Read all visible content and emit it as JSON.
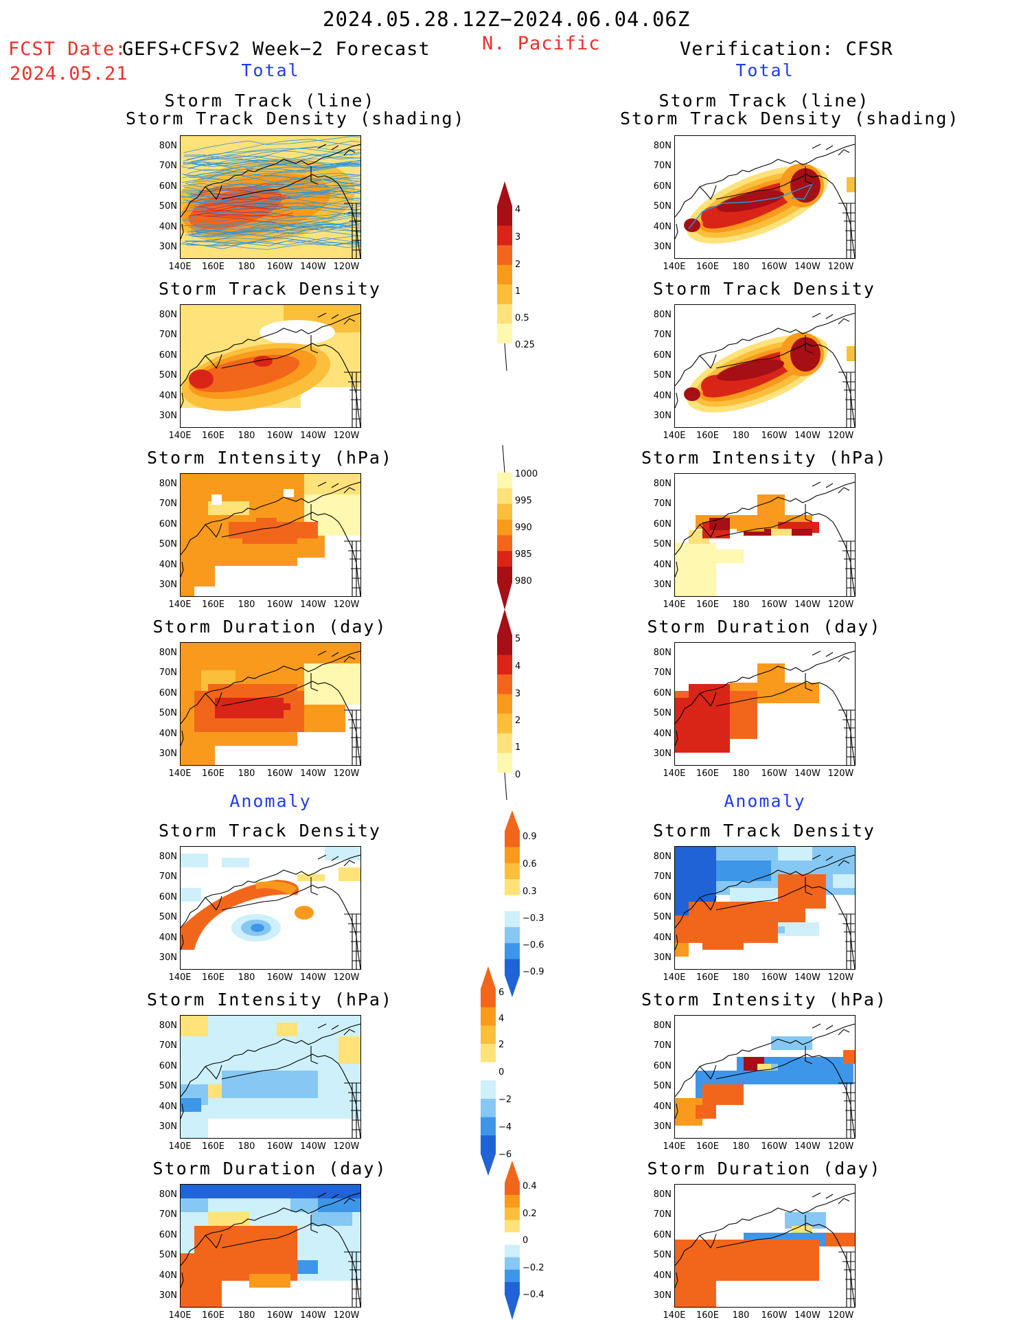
{
  "header": {
    "date_range": "2024.05.28.12Z−2024.06.04.06Z",
    "fcst_label": "FCST Date:",
    "fcst_date": "2024.05.21",
    "model": "GEFS+CFSv2 Week−2 Forecast",
    "region": "N. Pacific",
    "verification": "Verification: CFSR"
  },
  "sections": {
    "total": "Total",
    "anomaly": "Anomaly"
  },
  "panel_titles": {
    "track_line": "Storm Track (line)",
    "track_shading": "Storm Track Density (shading)",
    "density": "Storm Track Density",
    "intensity": "Storm Intensity (hPa)",
    "duration": "Storm Duration (day)"
  },
  "axes": {
    "y_ticks": [
      "80N",
      "70N",
      "60N",
      "50N",
      "40N",
      "30N"
    ],
    "x_ticks": [
      "140E",
      "160E",
      "180",
      "160W",
      "140W",
      "120W"
    ]
  },
  "colorbars": {
    "density_total": [
      "4",
      "3",
      "2",
      "1",
      "0.5",
      "0.25"
    ],
    "intensity_total": [
      "1000",
      "995",
      "990",
      "985",
      "980"
    ],
    "duration_total": [
      "5",
      "4",
      "3",
      "2",
      "1",
      "0"
    ],
    "density_anom": [
      "0.9",
      "0.6",
      "0.3",
      "−0.3",
      "−0.6",
      "−0.9"
    ],
    "intensity_anom": [
      "6",
      "4",
      "2",
      "0",
      "−2",
      "−4",
      "−6"
    ],
    "duration_anom": [
      "0.4",
      "0.2",
      "0",
      "−0.2",
      "−0.4"
    ]
  },
  "colors": {
    "pale_yellow": "#fff8b0",
    "yellow": "#ffe27a",
    "light_orange": "#fbbf3c",
    "orange": "#f99a1c",
    "orange_red": "#f2661c",
    "red": "#d92518",
    "dark_red": "#a50f15",
    "light_blue": "#cdf0fb",
    "mid_blue": "#86c8f3",
    "blue": "#3e96e8",
    "dark_blue": "#1f63d6",
    "track_blue": "#2796e0",
    "track_red": "#e02020"
  }
}
